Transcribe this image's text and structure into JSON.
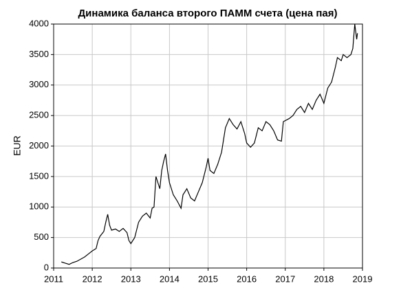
{
  "chart_data": {
    "type": "line",
    "title": "Динамика баланса второго ПАММ счета (цена пая)",
    "y_label": "EUR",
    "x": [
      2011.2,
      2011.3,
      2011.4,
      2011.5,
      2011.6,
      2011.8,
      2011.9,
      2012.0,
      2012.1,
      2012.15,
      2012.2,
      2012.3,
      2012.35,
      2012.4,
      2012.45,
      2012.5,
      2012.6,
      2012.7,
      2012.8,
      2012.9,
      2012.95,
      2013.0,
      2013.1,
      2013.2,
      2013.3,
      2013.4,
      2013.5,
      2013.55,
      2013.6,
      2013.65,
      2013.7,
      2013.75,
      2013.8,
      2013.85,
      2013.9,
      2013.95,
      2014.0,
      2014.1,
      2014.2,
      2014.3,
      2014.35,
      2014.45,
      2014.55,
      2014.65,
      2014.75,
      2014.85,
      2014.95,
      2015.0,
      2015.05,
      2015.15,
      2015.25,
      2015.35,
      2015.45,
      2015.55,
      2015.65,
      2015.75,
      2015.85,
      2015.95,
      2016.0,
      2016.1,
      2016.2,
      2016.3,
      2016.4,
      2016.5,
      2016.6,
      2016.7,
      2016.8,
      2016.9,
      2016.95,
      2017.1,
      2017.2,
      2017.3,
      2017.4,
      2017.5,
      2017.6,
      2017.7,
      2017.8,
      2017.9,
      2018.0,
      2018.1,
      2018.2,
      2018.3,
      2018.35,
      2018.45,
      2018.5,
      2018.6,
      2018.7,
      2018.75,
      2018.8,
      2018.85,
      2018.87
    ],
    "series": [
      {
        "name": "EUR",
        "color": "#000000",
        "values": [
          100,
          80,
          60,
          90,
          110,
          180,
          230,
          280,
          320,
          450,
          520,
          600,
          750,
          880,
          700,
          620,
          640,
          600,
          650,
          580,
          450,
          400,
          500,
          750,
          850,
          900,
          820,
          980,
          1000,
          1500,
          1400,
          1300,
          1600,
          1750,
          1870,
          1600,
          1400,
          1200,
          1100,
          980,
          1200,
          1300,
          1150,
          1100,
          1250,
          1400,
          1650,
          1800,
          1600,
          1550,
          1700,
          1900,
          2300,
          2450,
          2350,
          2280,
          2400,
          2200,
          2050,
          1980,
          2050,
          2300,
          2250,
          2400,
          2350,
          2250,
          2100,
          2080,
          2400,
          2450,
          2500,
          2600,
          2650,
          2550,
          2700,
          2600,
          2750,
          2850,
          2700,
          2950,
          3050,
          3300,
          3450,
          3400,
          3500,
          3450,
          3500,
          3600,
          4000,
          3750,
          3850
        ]
      }
    ],
    "xlim": [
      2011,
      2019
    ],
    "xticks": [
      2011,
      2012,
      2013,
      2014,
      2015,
      2016,
      2017,
      2018,
      2019
    ],
    "ylim": [
      0,
      4000
    ],
    "yticks": [
      0,
      500,
      1000,
      1500,
      2000,
      2500,
      3000,
      3500,
      4000
    ],
    "grid": true
  }
}
